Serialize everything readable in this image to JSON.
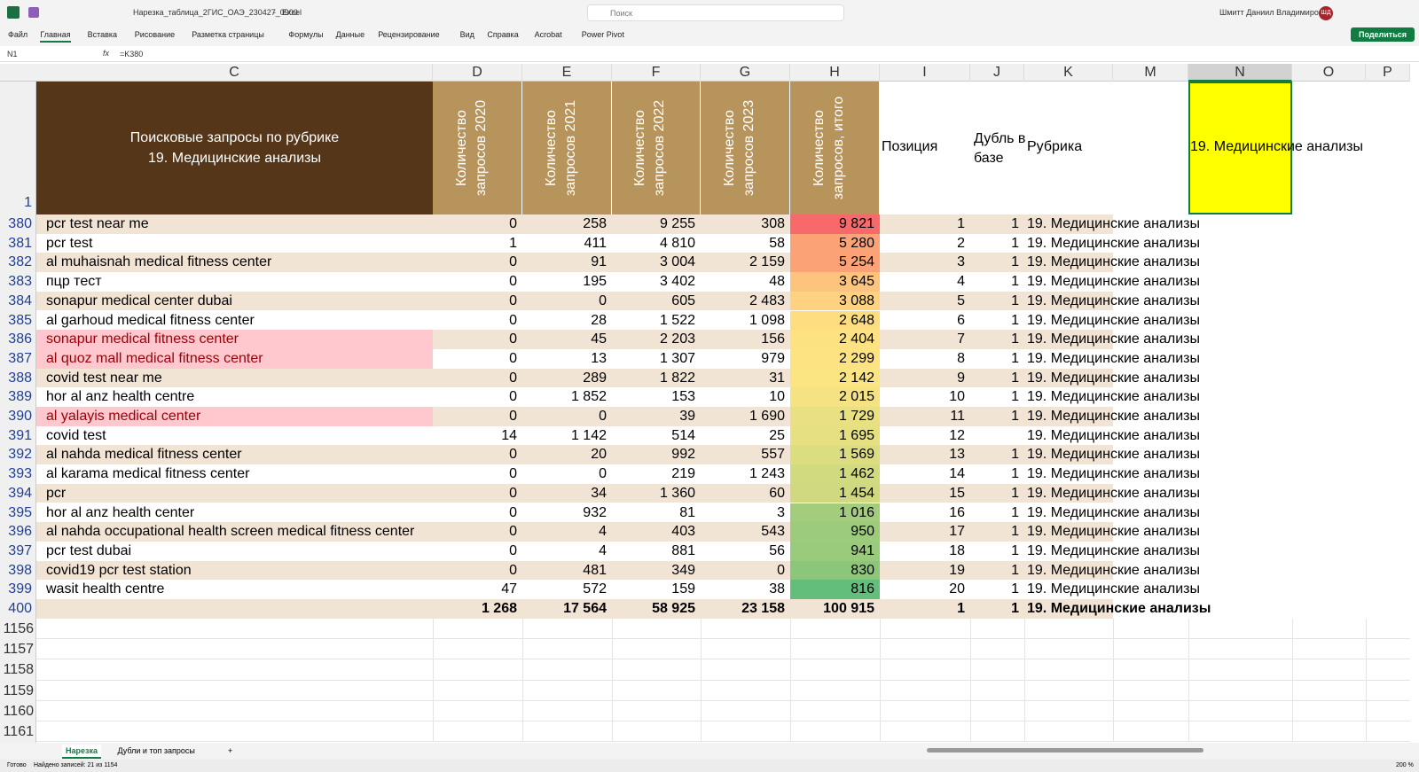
{
  "title_bar": {
    "filename": "Нарезка_таблица_2ГИС_ОАЭ_230427_0900",
    "separator": "-",
    "app": "Excel",
    "search": "Поиск",
    "user": "Шмитт Даниил Владимирович",
    "avatar": "ШД"
  },
  "ribbon_tabs": [
    "Файл",
    "Главная",
    "Вставка",
    "Рисование",
    "Разметка страницы",
    "Формулы",
    "Данные",
    "Рецензирование",
    "Вид",
    "Справка",
    "Acrobat",
    "Power Pivot"
  ],
  "share_button": "Поделиться",
  "formula_bar": {
    "name_box": "N1",
    "fx": "fx",
    "formula": "=K380"
  },
  "columns": [
    "C",
    "D",
    "E",
    "F",
    "G",
    "H",
    "I",
    "J",
    "K",
    "M",
    "N",
    "O",
    "P"
  ],
  "header_row": {
    "row": "1",
    "title_lines": [
      "Поисковые запросы по рубрике",
      "19. Медицинские анализы"
    ],
    "years": [
      "Количество запросов 2020",
      "Количество запросов 2021",
      "Количество запросов 2022",
      "Количество запросов 2023",
      "Количество запросов, итого"
    ],
    "position": "Позиция",
    "duplicate": "Дубль в базе",
    "rubric": "Рубрика",
    "selected": "19. Медицинские анализы"
  },
  "rows": [
    [
      "380",
      "pcr test near me",
      "0",
      "258",
      "9 255",
      "308",
      "9 821",
      "1",
      "1",
      "19. Медицинские анализы"
    ],
    [
      "381",
      "pcr test",
      "1",
      "411",
      "4 810",
      "58",
      "5 280",
      "2",
      "1",
      "19. Медицинские анализы"
    ],
    [
      "382",
      "al muhaisnah medical fitness center",
      "0",
      "91",
      "3 004",
      "2 159",
      "5 254",
      "3",
      "1",
      "19. Медицинские анализы"
    ],
    [
      "383",
      "пцр тест",
      "0",
      "195",
      "3 402",
      "48",
      "3 645",
      "4",
      "1",
      "19. Медицинские анализы"
    ],
    [
      "384",
      "sonapur medical center dubai",
      "0",
      "0",
      "605",
      "2 483",
      "3 088",
      "5",
      "1",
      "19. Медицинские анализы"
    ],
    [
      "385",
      "al garhoud medical fitness center",
      "0",
      "28",
      "1 522",
      "1 098",
      "2 648",
      "6",
      "1",
      "19. Медицинские анализы"
    ],
    [
      "386",
      "sonapur medical fitness center",
      "0",
      "45",
      "2 203",
      "156",
      "2 404",
      "7",
      "1",
      "19. Медицинские анализы"
    ],
    [
      "387",
      "al quoz mall medical fitness center",
      "0",
      "13",
      "1 307",
      "979",
      "2 299",
      "8",
      "1",
      "19. Медицинские анализы"
    ],
    [
      "388",
      "covid test near me",
      "0",
      "289",
      "1 822",
      "31",
      "2 142",
      "9",
      "1",
      "19. Медицинские анализы"
    ],
    [
      "389",
      "hor al anz health centre",
      "0",
      "1 852",
      "153",
      "10",
      "2 015",
      "10",
      "1",
      "19. Медицинские анализы"
    ],
    [
      "390",
      "al yalayis medical center",
      "0",
      "0",
      "39",
      "1 690",
      "1 729",
      "11",
      "1",
      "19. Медицинские анализы"
    ],
    [
      "391",
      "covid test",
      "14",
      "1 142",
      "514",
      "25",
      "1 695",
      "12",
      null,
      "19. Медицинские анализы"
    ],
    [
      "392",
      "al nahda medical fitness center",
      "0",
      "20",
      "992",
      "557",
      "1 569",
      "13",
      "1",
      "19. Медицинские анализы"
    ],
    [
      "393",
      "al karama medical fitness center",
      "0",
      "0",
      "219",
      "1 243",
      "1 462",
      "14",
      "1",
      "19. Медицинские анализы"
    ],
    [
      "394",
      "pcr",
      "0",
      "34",
      "1 360",
      "60",
      "1 454",
      "15",
      "1",
      "19. Медицинские анализы"
    ],
    [
      "395",
      "hor al anz health center",
      "0",
      "932",
      "81",
      "3",
      "1 016",
      "16",
      "1",
      "19. Медицинские анализы"
    ],
    [
      "396",
      "al nahda occupational health screen medical fitness center",
      "0",
      "4",
      "403",
      "543",
      "950",
      "17",
      "1",
      "19. Медицинские анализы"
    ],
    [
      "397",
      "pcr test dubai",
      "0",
      "4",
      "881",
      "56",
      "941",
      "18",
      "1",
      "19. Медицинские анализы"
    ],
    [
      "398",
      "covid19 pcr test station",
      "0",
      "481",
      "349",
      "0",
      "830",
      "19",
      "1",
      "19. Медицинские анализы"
    ],
    [
      "399",
      "wasit health centre",
      "47",
      "572",
      "159",
      "38",
      "816",
      "20",
      "1",
      "19. Медицинские анализы"
    ],
    [
      "400",
      null,
      "1 268",
      "17 564",
      "58 925",
      "23 158",
      "100 915",
      "1",
      "1",
      "19. Медицинские анализы"
    ]
  ],
  "empty_rows": [
    "1156",
    "1157",
    "1158",
    "1159",
    "1160",
    "1161"
  ],
  "sheet_tabs": [
    "Нарезка",
    "Дубли и топ запросы",
    "+"
  ],
  "status_bar": {
    "ready": "Готово",
    "records": "Найдено записей: 21 из 1154",
    "zoom": "200 %"
  }
}
